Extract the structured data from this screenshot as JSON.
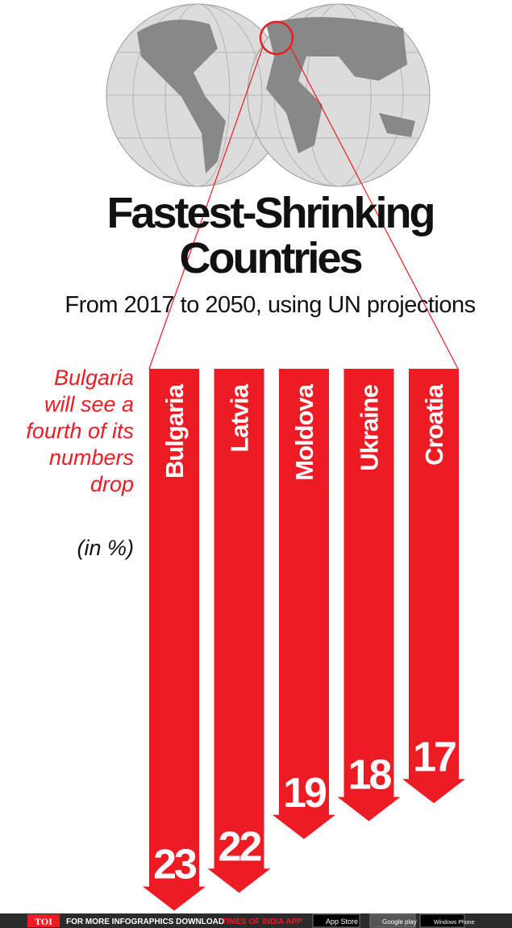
{
  "chart_data": {
    "type": "arrow-bar",
    "title": "Fastest-Shrinking Countries",
    "subtitle": "From 2017 to 2050, using UN projections",
    "annotation": "Bulgaria will see a fourth of its numbers drop",
    "unit_note": "(in %)",
    "categories": [
      "Bulgaria",
      "Latvia",
      "Moldova",
      "Ukraine",
      "Croatia"
    ],
    "values": [
      23,
      22,
      19,
      18,
      17
    ],
    "color": "#ed1c24"
  },
  "footer": {
    "brand": "TOI",
    "text": "FOR MORE  INFOGRAPHICS DOWNLOAD",
    "app": "TIMES OF INDIA APP",
    "badges": [
      "App Store",
      "Google play",
      "Windows Phone"
    ]
  }
}
